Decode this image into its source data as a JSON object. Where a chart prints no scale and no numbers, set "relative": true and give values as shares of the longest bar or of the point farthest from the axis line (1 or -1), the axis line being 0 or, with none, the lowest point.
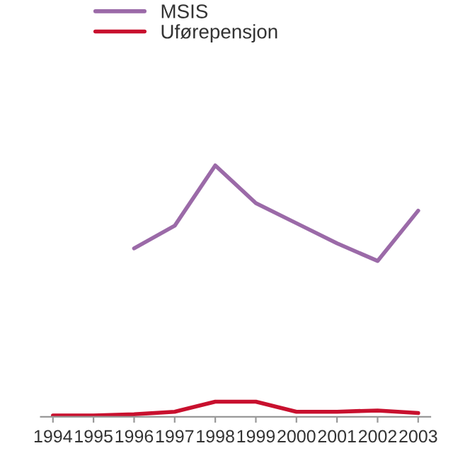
{
  "chart_data": {
    "type": "line",
    "relative": true,
    "categories": [
      "1994",
      "1995",
      "1996",
      "1997",
      "1998",
      "1999",
      "2000",
      "2001",
      "2002",
      "2003"
    ],
    "series": [
      {
        "name": "MSIS",
        "color": "#9b6aa8",
        "values": [
          null,
          null,
          0.67,
          0.76,
          1.0,
          0.85,
          0.77,
          0.69,
          0.62,
          0.82
        ]
      },
      {
        "name": "Uførepensjon",
        "color": "#c8102e",
        "values": [
          0.005,
          0.005,
          0.01,
          0.02,
          0.06,
          0.06,
          0.02,
          0.02,
          0.025,
          0.015
        ]
      }
    ],
    "legend": "top left",
    "grid": false,
    "marker": "none",
    "line_style": "solid"
  }
}
